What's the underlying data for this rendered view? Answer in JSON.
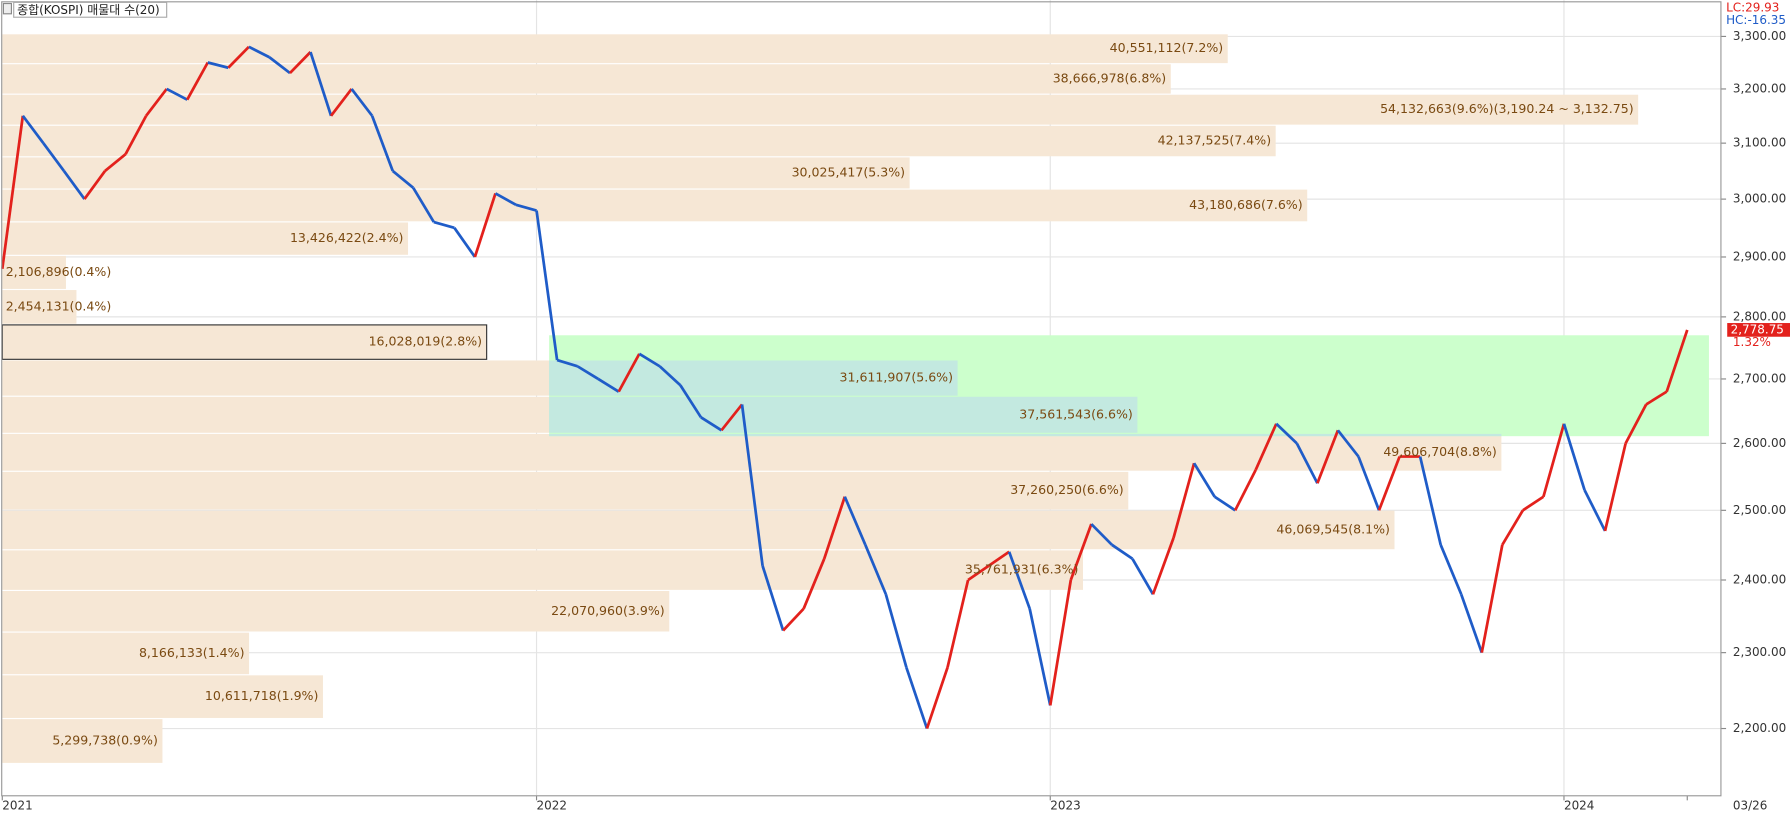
{
  "chart_data": {
    "type": "candlestick",
    "title": "종합(KOSPI) 매물대 수(20)",
    "lc_label": "LC:29.93",
    "hc_label": "HC:-16.35",
    "last_label": "2,778.75",
    "change_label": "1.32%",
    "log_scale": true,
    "grid": true,
    "ylim": [
      2115,
      3371
    ],
    "yticks": [
      {
        "value": 2200,
        "label": "2,200.00"
      },
      {
        "value": 2300,
        "label": "2,300.00"
      },
      {
        "value": 2400,
        "label": "2,400.00"
      },
      {
        "value": 2500,
        "label": "2,500.00"
      },
      {
        "value": 2600,
        "label": "2,600.00"
      },
      {
        "value": 2700,
        "label": "2,700.00"
      },
      {
        "value": 2800,
        "label": "2,800.00"
      },
      {
        "value": 2900,
        "label": "2,900.00"
      },
      {
        "value": 3000,
        "label": "3,000.00"
      },
      {
        "value": 3100,
        "label": "3,100.00"
      },
      {
        "value": 3200,
        "label": "3,200.00"
      },
      {
        "value": 3300,
        "label": "3,300.00"
      }
    ],
    "categories": [
      "2021",
      null,
      null,
      null,
      null,
      null,
      null,
      null,
      null,
      null,
      null,
      null,
      null,
      null,
      null,
      null,
      null,
      null,
      null,
      null,
      null,
      null,
      null,
      null,
      null,
      null,
      "2022",
      null,
      null,
      null,
      null,
      null,
      null,
      null,
      null,
      null,
      null,
      null,
      null,
      null,
      null,
      null,
      null,
      null,
      null,
      null,
      null,
      null,
      null,
      null,
      null,
      "2023",
      null,
      null,
      null,
      null,
      null,
      null,
      null,
      null,
      null,
      null,
      null,
      null,
      null,
      null,
      null,
      null,
      null,
      null,
      null,
      null,
      null,
      null,
      null,
      null,
      "2024",
      null,
      null,
      null,
      null,
      null,
      "03/26"
    ],
    "series": [
      {
        "name": "종합(KOSPI)",
        "up_color": "#e3211c",
        "down_color": "#1f5cc8",
        "values": [
          2880,
          3150,
          3100,
          3050,
          3000,
          3050,
          3080,
          3150,
          3200,
          3180,
          3250,
          3240,
          3280,
          3260,
          3230,
          3270,
          3150,
          3200,
          3150,
          3050,
          3020,
          2960,
          2950,
          2900,
          3010,
          2990,
          2980,
          2730,
          2720,
          2700,
          2680,
          2740,
          2720,
          2690,
          2640,
          2620,
          2660,
          2420,
          2330,
          2360,
          2430,
          2520,
          2450,
          2380,
          2280,
          2200,
          2280,
          2400,
          2420,
          2440,
          2360,
          2230,
          2400,
          2480,
          2450,
          2430,
          2380,
          2460,
          2570,
          2520,
          2500,
          2560,
          2630,
          2600,
          2540,
          2620,
          2580,
          2500,
          2580,
          2580,
          2450,
          2380,
          2300,
          2450,
          2500,
          2520,
          2630,
          2530,
          2470,
          2600,
          2660,
          2680,
          2778.75
        ]
      }
    ],
    "highlight": {
      "ylim": [
        2611,
        2770
      ],
      "color": "#ccffcc",
      "overlap_color": "#c3e9e0"
    },
    "profile": {
      "color": "#f6e7d5",
      "bins": [
        2155.42,
        2212.91,
        2270.4,
        2327.89,
        2385.38,
        2442.87,
        2500.36,
        2557.85,
        2615.34,
        2672.83,
        2730.32,
        2787.81,
        2845.3,
        2902.79,
        2960.28,
        3017.77,
        3075.26,
        3132.75,
        3190.24,
        3247.73,
        3305.22
      ],
      "values": [
        5299738,
        10611718,
        8166133,
        22070960,
        35761931,
        46069545,
        37260250,
        49606704,
        37561543,
        31611907,
        16028019,
        2454131,
        2106896,
        13426422,
        43180686,
        30025417,
        42137525,
        54132663,
        38666978,
        40551112
      ],
      "value_labels": [
        "5,299,738(0.9%)",
        "10,611,718(1.9%)",
        "8,166,133(1.4%)",
        "22,070,960(3.9%)",
        "35,761,931(6.3%)",
        "46,069,545(8.1%)",
        "37,260,250(6.6%)",
        "49,606,704(8.8%)",
        "37,561,543(6.6%)",
        "31,611,907(5.6%)",
        "16,028,019(2.8%)",
        "2,454,131(0.4%)",
        "2,106,896(0.4%)",
        "13,426,422(2.4%)",
        "43,180,686(7.6%)",
        "30,025,417(5.3%)",
        "42,137,525(7.4%)",
        "54,132,663(9.6%)(3,190.24 ~ 3,132.75)",
        "38,666,978(6.8%)",
        "40,551,112(7.2%)"
      ]
    }
  }
}
